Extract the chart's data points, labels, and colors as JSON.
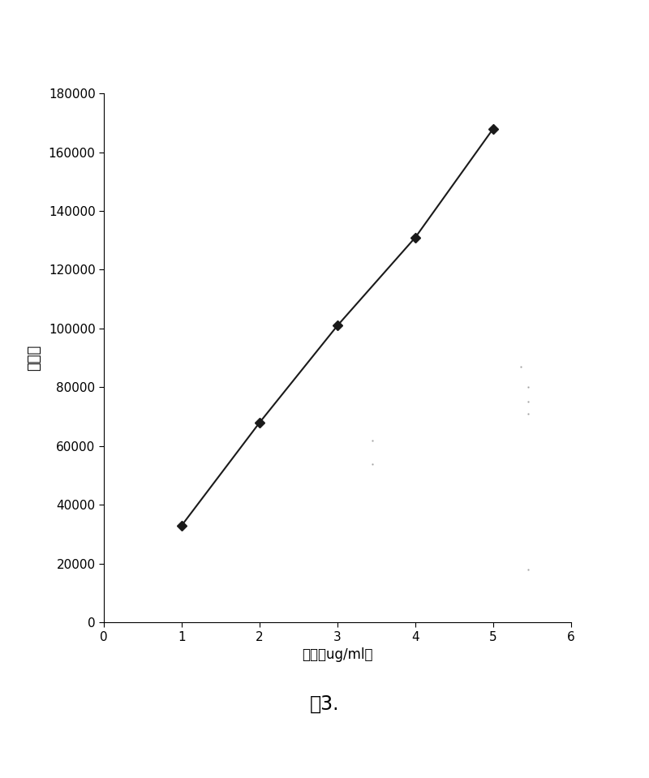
{
  "x": [
    1,
    2,
    3,
    4,
    5
  ],
  "y": [
    33000,
    68000,
    101000,
    131000,
    168000
  ],
  "xlim": [
    0,
    6
  ],
  "ylim": [
    0,
    180000
  ],
  "xticks": [
    0,
    1,
    2,
    3,
    4,
    5,
    6
  ],
  "yticks": [
    0,
    20000,
    40000,
    60000,
    80000,
    100000,
    120000,
    140000,
    160000,
    180000
  ],
  "xlabel": "浓度（ug/ml）",
  "ylabel": "峰面积",
  "caption": "图3.",
  "line_color": "#1a1a1a",
  "marker": "D",
  "marker_size": 6,
  "marker_color": "#1a1a1a",
  "line_width": 1.5,
  "background_color": "#ffffff",
  "ylabel_fontsize": 13,
  "xlabel_fontsize": 12,
  "tick_fontsize": 11,
  "caption_fontsize": 17,
  "scatter_dots": [
    [
      5.35,
      87000
    ],
    [
      5.45,
      80000
    ],
    [
      5.45,
      75000
    ],
    [
      5.45,
      71000
    ],
    [
      3.45,
      62000
    ],
    [
      3.45,
      54000
    ],
    [
      5.45,
      18000
    ]
  ]
}
